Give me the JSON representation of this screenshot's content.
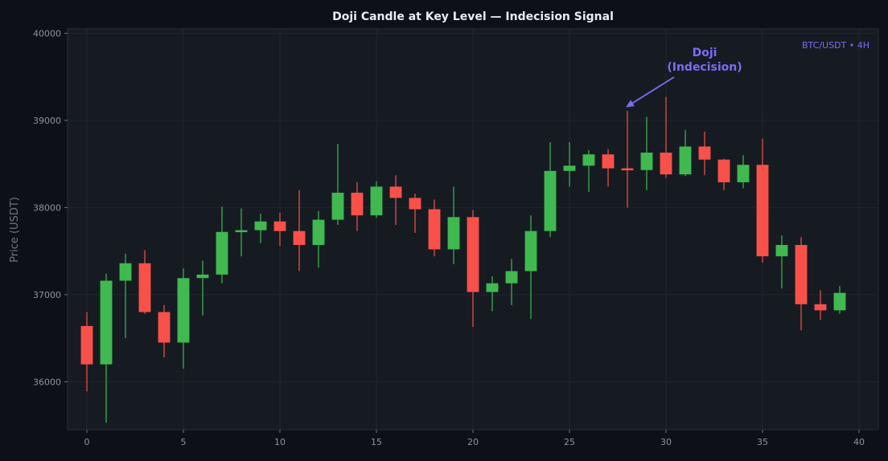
{
  "chart_data": {
    "type": "candlestick",
    "title": "Doji Candle at Key Level — Indecision Signal",
    "ylabel": "Price (USDT)",
    "xlabel": "",
    "xlim": [
      -1,
      41
    ],
    "ylim": [
      35450,
      40050
    ],
    "xticks": [
      0,
      5,
      10,
      15,
      20,
      25,
      30,
      35,
      40
    ],
    "yticks": [
      36000,
      37000,
      38000,
      39000,
      40000
    ],
    "grid": true,
    "watermark": "BTC/USDT • 4H",
    "colors": {
      "up": "#3fb950",
      "down": "#f85149",
      "annotation": "#7b6cf6",
      "background": "#0d1117",
      "plot_background": "#161b22"
    },
    "annotation": {
      "lines": [
        "Doji",
        "(Indecision)"
      ],
      "target_index": 28,
      "target_price": 39150
    },
    "candles": [
      {
        "x": 0,
        "open": 36640,
        "high": 36800,
        "low": 35890,
        "close": 36200
      },
      {
        "x": 1,
        "open": 36200,
        "high": 37240,
        "low": 35530,
        "close": 37160
      },
      {
        "x": 2,
        "open": 37160,
        "high": 37470,
        "low": 36500,
        "close": 37360
      },
      {
        "x": 3,
        "open": 37360,
        "high": 37510,
        "low": 36780,
        "close": 36800
      },
      {
        "x": 4,
        "open": 36800,
        "high": 36880,
        "low": 36280,
        "close": 36450
      },
      {
        "x": 5,
        "open": 36450,
        "high": 37300,
        "low": 36150,
        "close": 37190
      },
      {
        "x": 6,
        "open": 37190,
        "high": 37390,
        "low": 36760,
        "close": 37230
      },
      {
        "x": 7,
        "open": 37230,
        "high": 38010,
        "low": 37130,
        "close": 37720
      },
      {
        "x": 8,
        "open": 37720,
        "high": 37990,
        "low": 37440,
        "close": 37740
      },
      {
        "x": 9,
        "open": 37740,
        "high": 37930,
        "low": 37590,
        "close": 37840
      },
      {
        "x": 10,
        "open": 37840,
        "high": 37940,
        "low": 37560,
        "close": 37730
      },
      {
        "x": 11,
        "open": 37730,
        "high": 38200,
        "low": 37270,
        "close": 37570
      },
      {
        "x": 12,
        "open": 37570,
        "high": 37960,
        "low": 37310,
        "close": 37860
      },
      {
        "x": 13,
        "open": 37860,
        "high": 38730,
        "low": 37800,
        "close": 38170
      },
      {
        "x": 14,
        "open": 38170,
        "high": 38290,
        "low": 37730,
        "close": 37910
      },
      {
        "x": 15,
        "open": 37910,
        "high": 38300,
        "low": 37880,
        "close": 38240
      },
      {
        "x": 16,
        "open": 38240,
        "high": 38370,
        "low": 37800,
        "close": 38110
      },
      {
        "x": 17,
        "open": 38110,
        "high": 38160,
        "low": 37710,
        "close": 37980
      },
      {
        "x": 18,
        "open": 37980,
        "high": 38090,
        "low": 37440,
        "close": 37520
      },
      {
        "x": 19,
        "open": 37520,
        "high": 38240,
        "low": 37350,
        "close": 37890
      },
      {
        "x": 20,
        "open": 37890,
        "high": 37970,
        "low": 36630,
        "close": 37030
      },
      {
        "x": 21,
        "open": 37030,
        "high": 37210,
        "low": 36810,
        "close": 37130
      },
      {
        "x": 22,
        "open": 37130,
        "high": 37410,
        "low": 36880,
        "close": 37270
      },
      {
        "x": 23,
        "open": 37270,
        "high": 37910,
        "low": 36720,
        "close": 37730
      },
      {
        "x": 24,
        "open": 37730,
        "high": 38750,
        "low": 37660,
        "close": 38420
      },
      {
        "x": 25,
        "open": 38420,
        "high": 38750,
        "low": 38240,
        "close": 38480
      },
      {
        "x": 26,
        "open": 38480,
        "high": 38660,
        "low": 38180,
        "close": 38610
      },
      {
        "x": 27,
        "open": 38610,
        "high": 38670,
        "low": 38240,
        "close": 38450
      },
      {
        "x": 28,
        "open": 38450,
        "high": 39110,
        "low": 38000,
        "close": 38430
      },
      {
        "x": 29,
        "open": 38430,
        "high": 39040,
        "low": 38200,
        "close": 38630
      },
      {
        "x": 30,
        "open": 38630,
        "high": 39270,
        "low": 38340,
        "close": 38380
      },
      {
        "x": 31,
        "open": 38380,
        "high": 38890,
        "low": 38360,
        "close": 38700
      },
      {
        "x": 32,
        "open": 38700,
        "high": 38870,
        "low": 38370,
        "close": 38550
      },
      {
        "x": 33,
        "open": 38550,
        "high": 38560,
        "low": 38200,
        "close": 38290
      },
      {
        "x": 34,
        "open": 38290,
        "high": 38600,
        "low": 38220,
        "close": 38490
      },
      {
        "x": 35,
        "open": 38490,
        "high": 38790,
        "low": 37370,
        "close": 37440
      },
      {
        "x": 36,
        "open": 37440,
        "high": 37680,
        "low": 37070,
        "close": 37570
      },
      {
        "x": 37,
        "open": 37570,
        "high": 37660,
        "low": 36590,
        "close": 36890
      },
      {
        "x": 38,
        "open": 36890,
        "high": 37050,
        "low": 36710,
        "close": 36820
      },
      {
        "x": 39,
        "open": 36820,
        "high": 37100,
        "low": 36780,
        "close": 37020
      }
    ]
  }
}
